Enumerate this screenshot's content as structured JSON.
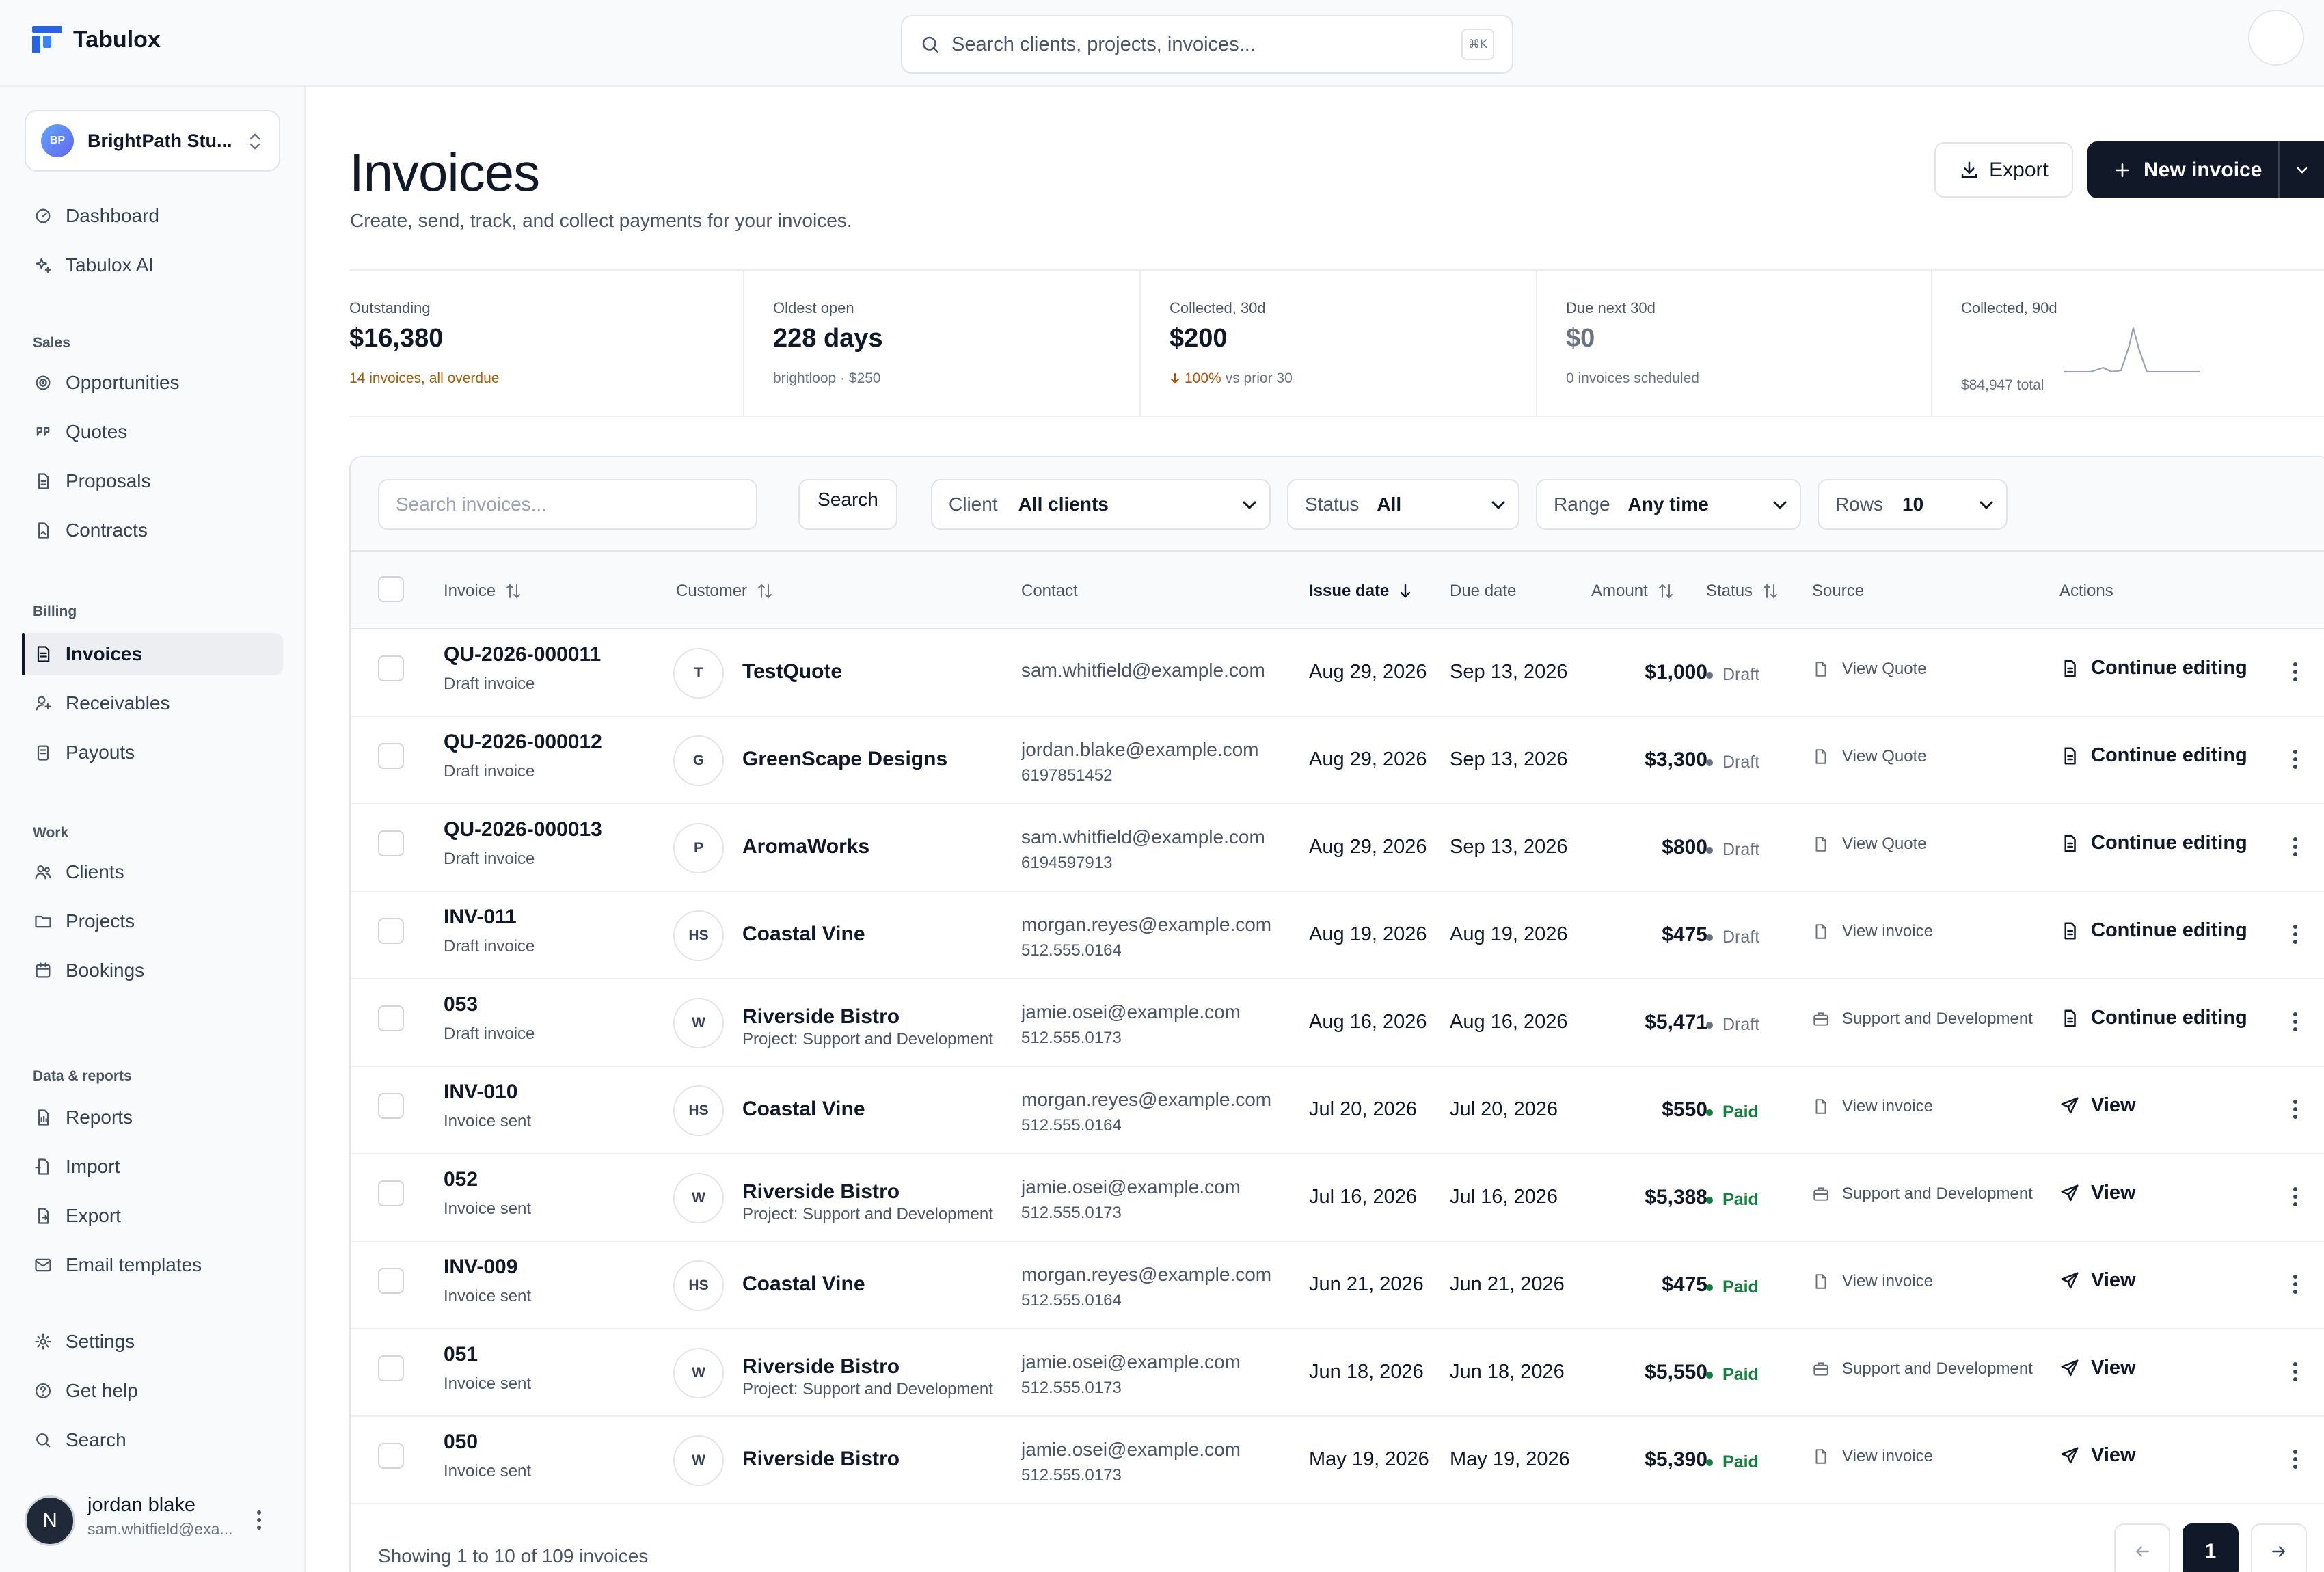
{
  "app": {
    "name": "Tabulox"
  },
  "search": {
    "placeholder": "Search clients, projects, invoices...",
    "shortcut": "⌘K"
  },
  "workspace": {
    "initials": "BP",
    "name": "BrightPath Stu..."
  },
  "sidebar": {
    "top": [
      {
        "label": "Dashboard",
        "icon": "dashboard-icon"
      },
      {
        "label": "Tabulox AI",
        "icon": "sparkles-icon"
      }
    ],
    "groups": [
      {
        "title": "Sales",
        "items": [
          {
            "label": "Opportunities",
            "icon": "target-icon"
          },
          {
            "label": "Quotes",
            "icon": "quote-icon"
          },
          {
            "label": "Proposals",
            "icon": "document-icon"
          },
          {
            "label": "Contracts",
            "icon": "contract-icon"
          }
        ]
      },
      {
        "title": "Billing",
        "items": [
          {
            "label": "Invoices",
            "icon": "invoice-icon",
            "active": true
          },
          {
            "label": "Receivables",
            "icon": "receivables-icon"
          },
          {
            "label": "Payouts",
            "icon": "payouts-icon"
          }
        ]
      },
      {
        "title": "Work",
        "items": [
          {
            "label": "Clients",
            "icon": "users-icon"
          },
          {
            "label": "Projects",
            "icon": "folder-icon"
          },
          {
            "label": "Bookings",
            "icon": "calendar-icon"
          }
        ]
      },
      {
        "title": "Data & reports",
        "items": [
          {
            "label": "Reports",
            "icon": "report-icon"
          },
          {
            "label": "Import",
            "icon": "import-icon"
          },
          {
            "label": "Export",
            "icon": "export-icon"
          },
          {
            "label": "Email templates",
            "icon": "mail-icon"
          }
        ]
      }
    ],
    "bottom": [
      {
        "label": "Settings",
        "icon": "gear-icon"
      },
      {
        "label": "Get help",
        "icon": "help-icon"
      },
      {
        "label": "Search",
        "icon": "search-icon"
      }
    ]
  },
  "user": {
    "initial": "N",
    "name": "jordan blake",
    "email": "sam.whitfield@exa..."
  },
  "page": {
    "title": "Invoices",
    "subtitle": "Create, send, track, and collect payments for your invoices.",
    "export_label": "Export",
    "new_label": "New invoice"
  },
  "stats": [
    {
      "label": "Outstanding",
      "value": "$16,380",
      "note": "14 invoices, all overdue",
      "note_color": "#a16207"
    },
    {
      "label": "Oldest open",
      "value": "228 days",
      "note": "brightloop · $250"
    },
    {
      "label": "Collected, 30d",
      "value": "$200",
      "note_pct": "100%",
      "note": "vs prior 30"
    },
    {
      "label": "Due next 30d",
      "value": "$0",
      "note": "0 invoices scheduled"
    },
    {
      "label": "Collected, 90d",
      "note": "$84,947 total"
    }
  ],
  "filters": {
    "search_placeholder": "Search invoices...",
    "search_button": "Search",
    "client": {
      "label": "Client",
      "value": "All clients"
    },
    "status": {
      "label": "Status",
      "value": "All"
    },
    "range": {
      "label": "Range",
      "value": "Any time"
    },
    "rows": {
      "label": "Rows",
      "value": "10"
    }
  },
  "columns": {
    "invoice": "Invoice",
    "customer": "Customer",
    "contact": "Contact",
    "issue_date": "Issue date",
    "due_date": "Due date",
    "amount": "Amount",
    "status": "Status",
    "source": "Source",
    "actions": "Actions"
  },
  "invoices": [
    {
      "number": "QU-2026-000011",
      "subtitle": "Draft invoice",
      "initials": "T",
      "customer": "TestQuote",
      "project": "",
      "email": "sam.whitfield@example.com",
      "phone": "",
      "issue": "Aug 29, 2026",
      "due": "Sep 13, 2026",
      "amount": "$1,000",
      "status": "Draft",
      "source": "View Quote",
      "source_icon": "file-icon",
      "action": "Continue editing",
      "action_icon": "document-icon"
    },
    {
      "number": "QU-2026-000012",
      "subtitle": "Draft invoice",
      "initials": "G",
      "customer": "GreenScape Designs",
      "project": "",
      "email": "jordan.blake@example.com",
      "phone": "6197851452",
      "issue": "Aug 29, 2026",
      "due": "Sep 13, 2026",
      "amount": "$3,300",
      "status": "Draft",
      "source": "View Quote",
      "source_icon": "file-icon",
      "action": "Continue editing",
      "action_icon": "document-icon"
    },
    {
      "number": "QU-2026-000013",
      "subtitle": "Draft invoice",
      "initials": "P",
      "customer": "AromaWorks",
      "project": "",
      "email": "sam.whitfield@example.com",
      "phone": "6194597913",
      "issue": "Aug 29, 2026",
      "due": "Sep 13, 2026",
      "amount": "$800",
      "status": "Draft",
      "source": "View Quote",
      "source_icon": "file-icon",
      "action": "Continue editing",
      "action_icon": "document-icon"
    },
    {
      "number": "INV-011",
      "subtitle": "Draft invoice",
      "initials": "HS",
      "customer": "Coastal Vine",
      "project": "",
      "email": "morgan.reyes@example.com",
      "phone": "512.555.0164",
      "issue": "Aug 19, 2026",
      "due": "Aug 19, 2026",
      "amount": "$475",
      "status": "Draft",
      "source": "View invoice",
      "source_icon": "file-icon",
      "action": "Continue editing",
      "action_icon": "document-icon"
    },
    {
      "number": "053",
      "subtitle": "Draft invoice",
      "initials": "W",
      "customer": "Riverside Bistro",
      "project": "Project: Support and Development",
      "email": "jamie.osei@example.com",
      "phone": "512.555.0173",
      "issue": "Aug 16, 2026",
      "due": "Aug 16, 2026",
      "amount": "$5,471",
      "status": "Draft",
      "source": "Support and Development",
      "source_icon": "briefcase-icon",
      "action": "Continue editing",
      "action_icon": "document-icon"
    },
    {
      "number": "INV-010",
      "subtitle": "Invoice sent",
      "initials": "HS",
      "customer": "Coastal Vine",
      "project": "",
      "email": "morgan.reyes@example.com",
      "phone": "512.555.0164",
      "issue": "Jul 20, 2026",
      "due": "Jul 20, 2026",
      "amount": "$550",
      "status": "Paid",
      "source": "View invoice",
      "source_icon": "file-icon",
      "action": "View",
      "action_icon": "send-icon"
    },
    {
      "number": "052",
      "subtitle": "Invoice sent",
      "initials": "W",
      "customer": "Riverside Bistro",
      "project": "Project: Support and Development",
      "email": "jamie.osei@example.com",
      "phone": "512.555.0173",
      "issue": "Jul 16, 2026",
      "due": "Jul 16, 2026",
      "amount": "$5,388",
      "status": "Paid",
      "source": "Support and Development",
      "source_icon": "briefcase-icon",
      "action": "View",
      "action_icon": "send-icon"
    },
    {
      "number": "INV-009",
      "subtitle": "Invoice sent",
      "initials": "HS",
      "customer": "Coastal Vine",
      "project": "",
      "email": "morgan.reyes@example.com",
      "phone": "512.555.0164",
      "issue": "Jun 21, 2026",
      "due": "Jun 21, 2026",
      "amount": "$475",
      "status": "Paid",
      "source": "View invoice",
      "source_icon": "file-icon",
      "action": "View",
      "action_icon": "send-icon"
    },
    {
      "number": "051",
      "subtitle": "Invoice sent",
      "initials": "W",
      "customer": "Riverside Bistro",
      "project": "Project: Support and Development",
      "email": "jamie.osei@example.com",
      "phone": "512.555.0173",
      "issue": "Jun 18, 2026",
      "due": "Jun 18, 2026",
      "amount": "$5,550",
      "status": "Paid",
      "source": "Support and Development",
      "source_icon": "briefcase-icon",
      "action": "View",
      "action_icon": "send-icon"
    },
    {
      "number": "050",
      "subtitle": "Invoice sent",
      "initials": "W",
      "customer": "Riverside Bistro",
      "project": "",
      "email": "jamie.osei@example.com",
      "phone": "512.555.0173",
      "issue": "May 19, 2026",
      "due": "May 19, 2026",
      "amount": "$5,390",
      "status": "Paid",
      "source": "View invoice",
      "source_icon": "file-icon",
      "action": "View",
      "action_icon": "send-icon"
    }
  ],
  "status_colors": {
    "Draft": "#6b7280",
    "Paid": "#15803d"
  },
  "pagination": {
    "summary": "Showing 1 to 10 of 109 invoices",
    "current": "1"
  }
}
